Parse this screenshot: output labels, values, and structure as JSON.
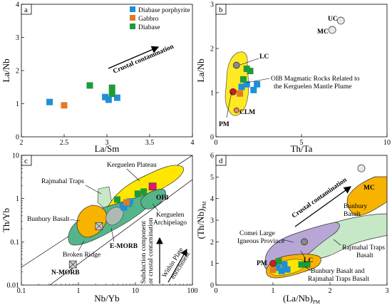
{
  "colors": {
    "diabase_porphyrite": "#1f8fd6",
    "gabbro": "#e07b26",
    "diabase": "#1e9a3a",
    "yellow_field": "#ffe600",
    "green_field": "#55b58a",
    "light_green_field": "#c6e8c6",
    "purple_field": "#b8a6d6",
    "oib": "#e0186e",
    "pm": "#d7191c",
    "clm": "#f08080",
    "orange_field": "#f7b300"
  },
  "chart_data": [
    {
      "panel": "a",
      "type": "scatter",
      "xlabel": "La/Sm",
      "ylabel": "La/Nb",
      "xlim": [
        2,
        4
      ],
      "ylim": [
        0,
        4
      ],
      "xticks": [
        "2",
        "2.5",
        "3",
        "3.5",
        "4"
      ],
      "yticks": [
        "0",
        "1",
        "2",
        "3",
        "4"
      ],
      "legend": [
        "Diabase porphyrite",
        "Gabbro",
        "Diabase"
      ],
      "legend_position": "top-right",
      "annotation": "Crustal contamination",
      "series": [
        {
          "name": "Diabase porphyrite",
          "points": [
            [
              2.33,
              1.05
            ],
            [
              2.98,
              1.2
            ],
            [
              3.02,
              1.12
            ],
            [
              3.12,
              1.18
            ]
          ]
        },
        {
          "name": "Gabbro",
          "points": [
            [
              2.5,
              0.95
            ]
          ]
        },
        {
          "name": "Diabase",
          "points": [
            [
              2.8,
              1.55
            ],
            [
              3.06,
              1.48
            ],
            [
              3.06,
              1.3
            ]
          ]
        }
      ]
    },
    {
      "panel": "b",
      "type": "scatter",
      "xlabel": "Th/Ta",
      "ylabel": "La/Nb",
      "xlim": [
        0,
        10
      ],
      "ylim": [
        0,
        3
      ],
      "xticks": [
        "0",
        "5",
        "10"
      ],
      "yticks": [
        "0",
        "1",
        "2",
        "3"
      ],
      "labels": {
        "uc": "UC",
        "mc": "MC",
        "lc": "LC",
        "pm": "PM",
        "clm": "CLM",
        "oib_field": "OIB Magmatic Rocks Related to the Kerguelen Mantle Plume"
      },
      "references": [
        {
          "name": "UC",
          "x": 7.3,
          "y": 2.63
        },
        {
          "name": "MC",
          "x": 6.8,
          "y": 2.42
        },
        {
          "name": "LC",
          "x": 1.2,
          "y": 1.62
        },
        {
          "name": "PM",
          "x": 1.0,
          "y": 1.02
        },
        {
          "name": "CLM",
          "x": 1.2,
          "y": 0.6
        }
      ],
      "series": [
        {
          "name": "Diabase porphyrite",
          "points": [
            [
              1.5,
              1.13
            ],
            [
              1.8,
              1.19
            ],
            [
              2.4,
              1.19
            ],
            [
              2.2,
              1.06
            ]
          ]
        },
        {
          "name": "Gabbro",
          "points": [
            [
              1.4,
              0.98
            ]
          ]
        },
        {
          "name": "Diabase",
          "points": [
            [
              1.8,
              1.54
            ],
            [
              2.0,
              1.49
            ],
            [
              1.6,
              1.3
            ]
          ]
        }
      ]
    },
    {
      "panel": "c",
      "type": "scatter",
      "xscale": "log",
      "yscale": "log",
      "xlabel": "Nb/Yb",
      "ylabel": "Th/Yb",
      "xlim": [
        0.1,
        100
      ],
      "ylim": [
        0.01,
        10
      ],
      "xticks": [
        "0.1",
        "1",
        "10",
        "100"
      ],
      "yticks": [
        "0.01",
        "0.1",
        "1",
        "10"
      ],
      "labels": {
        "rajmahal": "Rajmahal Traps",
        "kerguelen_plateau": "Kerguelen Plateau",
        "oib": "OIB",
        "kerguelen_archipelago": "Kerguelen Archipelago",
        "bunbury": "Bunbury Basalt",
        "emorb": "E-MORB",
        "broken": "Broken Ridge",
        "nmorb": "N-MORB",
        "subduction": "Subduction component or crustal contamination",
        "within_plate": "Within Plate enrichment"
      },
      "references": [
        {
          "name": "OIB",
          "x": 20,
          "y": 1.9
        },
        {
          "name": "E-MORB",
          "x": 2.3,
          "y": 0.23
        },
        {
          "name": "N-MORB",
          "x": 0.8,
          "y": 0.03
        }
      ],
      "series": [
        {
          "name": "Diabase porphyrite",
          "points": [
            [
              6.3,
              0.62
            ],
            [
              7.6,
              0.76
            ],
            [
              6.0,
              0.69
            ],
            [
              8.0,
              0.86
            ]
          ]
        },
        {
          "name": "Gabbro",
          "points": [
            [
              7.0,
              0.82
            ]
          ]
        },
        {
          "name": "Diabase",
          "points": [
            [
              4.8,
              0.95
            ],
            [
              14,
              1.45
            ],
            [
              11,
              1.3
            ]
          ]
        }
      ]
    },
    {
      "panel": "d",
      "type": "scatter",
      "xlabel": "(La/Nb)PM",
      "ylabel": "(Th/Nb)PM",
      "xlim": [
        0,
        3
      ],
      "ylim": [
        0,
        6
      ],
      "xticks": [
        "0",
        "1",
        "2",
        "3"
      ],
      "yticks": [
        "0",
        "1",
        "2",
        "3",
        "4",
        "5",
        "6"
      ],
      "labels": {
        "mc": "MC",
        "bunbury": "Bunbury Basalt",
        "crustal": "Crustal contamination",
        "comei": "Comei Large Igneous Province",
        "rajmahal": "Rajmahal Traps Basalt",
        "pm": "PM",
        "lc": "LC",
        "bunbury_rajmahal": "Bunbury Basalt and Rajmahal Traps Basalt"
      },
      "references": [
        {
          "name": "MC",
          "x": 2.55,
          "y": 5.4
        },
        {
          "name": "LC",
          "x": 1.55,
          "y": 2.0
        },
        {
          "name": "PM",
          "x": 1.0,
          "y": 1.0
        }
      ],
      "series": [
        {
          "name": "Diabase porphyrite",
          "points": [
            [
              1.08,
              0.8
            ],
            [
              1.2,
              0.95
            ],
            [
              1.25,
              0.72
            ],
            [
              1.15,
              0.65
            ]
          ]
        },
        {
          "name": "Gabbro",
          "points": [
            [
              1.0,
              0.7
            ]
          ]
        },
        {
          "name": "Diabase",
          "points": [
            [
              1.5,
              0.95
            ],
            [
              1.6,
              0.95
            ],
            [
              1.1,
              1.1
            ]
          ]
        }
      ]
    }
  ]
}
